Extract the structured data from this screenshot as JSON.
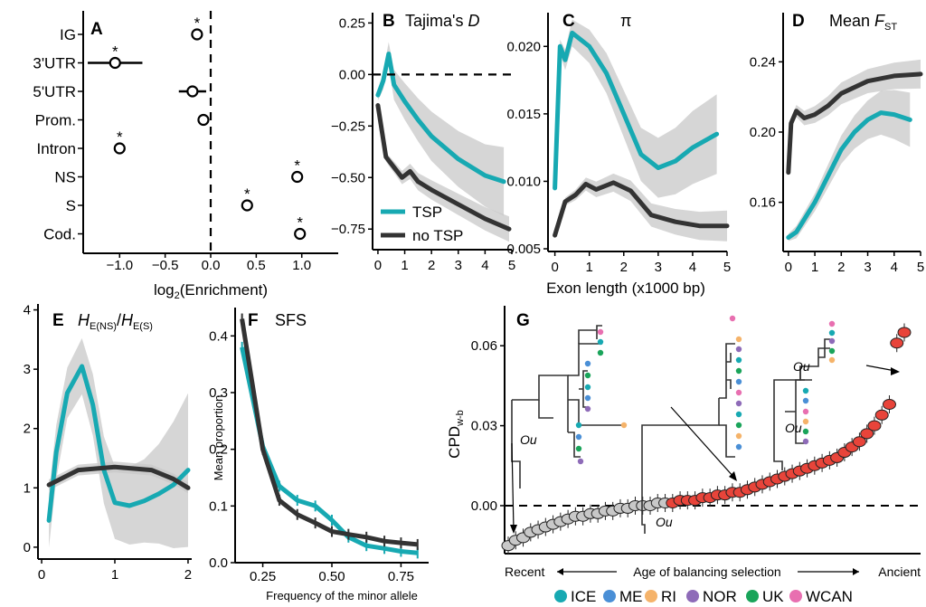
{
  "colors": {
    "tsp": "#17a9b2",
    "no_tsp": "#333333",
    "band": "#c8c8c8",
    "red": "#e8443a",
    "grey_pt": "#c8c8c8"
  },
  "panels": {
    "A": {
      "letter": "A",
      "xlabel": "log2(Enrichment)",
      "xlabel_base": "log",
      "xlabel_sub": "2",
      "xlabel_rest": "(Enrichment)",
      "xticks": [
        "−1.0",
        "−0.5",
        "0.0",
        "0.5",
        "1.0"
      ],
      "star": "*"
    },
    "B": {
      "letter": "B",
      "title": "Tajima's ",
      "title_italic": "D",
      "yticks": [
        "0.25",
        "0.00",
        "−0.25",
        "−0.50",
        "−0.75"
      ],
      "xticks": [
        "0",
        "1",
        "2",
        "3",
        "4",
        "5"
      ]
    },
    "C": {
      "letter": "C",
      "title": "π",
      "yticks": [
        "0.020",
        "0.015",
        "0.010",
        "0.005"
      ],
      "xticks": [
        "0",
        "1",
        "2",
        "3",
        "4",
        "5"
      ],
      "xlabel": "Exon length (x1000 bp)"
    },
    "D": {
      "letter": "D",
      "title": "Mean ",
      "title_italic": "F",
      "title_sub": "ST",
      "yticks": [
        "0.24",
        "0.20",
        "0.16"
      ],
      "xticks": [
        "0",
        "1",
        "2",
        "3",
        "4",
        "5"
      ]
    },
    "E": {
      "letter": "E",
      "title_h1": "H",
      "title_sub1": "E(NS)",
      "title_slash": "/",
      "title_h2": "H",
      "title_sub2": "E(S)",
      "yticks": [
        "4",
        "3",
        "2",
        "1",
        "0"
      ],
      "xticks": [
        "0",
        "1",
        "2"
      ]
    },
    "F": {
      "letter": "F",
      "title": "SFS",
      "ylabel": "Mean proportion",
      "xlabel": "Frequency of the minor allele",
      "yticks": [
        "0.4",
        "0.3",
        "0.2",
        "0.1",
        "0.0"
      ],
      "xticks": [
        "0.25",
        "0.50",
        "0.75"
      ]
    },
    "G": {
      "letter": "G",
      "ylabel_base": "CPD",
      "ylabel_sub": "w-b",
      "yticks": [
        "0.06",
        "0.03",
        "0.00"
      ],
      "recent": "Recent",
      "ancient": "Ancient",
      "axis_text": "Age of balancing selection",
      "ou": "Ou"
    }
  },
  "legend_bc": [
    {
      "label": "TSP",
      "color": "#17a9b2"
    },
    {
      "label": "no TSP",
      "color": "#333333"
    }
  ],
  "legend_pop": [
    {
      "label": "ICE",
      "color": "#17a9b2"
    },
    {
      "label": "ME",
      "color": "#4a8fd6"
    },
    {
      "label": "RI",
      "color": "#f5b36a"
    },
    {
      "label": "NOR",
      "color": "#8e6bb8"
    },
    {
      "label": "UK",
      "color": "#1aa45a"
    },
    {
      "label": "WCAN",
      "color": "#e86fb0"
    }
  ],
  "chart_data": [
    {
      "panel": "A",
      "type": "scatter",
      "xlim": [
        -1.4,
        1.4
      ],
      "categories": [
        "IG",
        "3'UTR",
        "5'UTR",
        "Prom.",
        "Intron",
        "NS",
        "S",
        "Cod."
      ],
      "values": [
        -0.15,
        -1.05,
        -0.2,
        -0.08,
        -1.0,
        0.95,
        0.4,
        0.98
      ],
      "ci_low": [
        -0.2,
        -1.35,
        -0.35,
        -0.13,
        -1.03,
        0.92,
        0.37,
        0.95
      ],
      "ci_high": [
        -0.1,
        -0.75,
        -0.05,
        -0.03,
        -0.97,
        0.98,
        0.43,
        1.01
      ],
      "significant": [
        true,
        true,
        false,
        false,
        true,
        true,
        true,
        true
      ]
    },
    {
      "panel": "B",
      "type": "line",
      "ylim": [
        -0.85,
        0.3
      ],
      "xlim": [
        -0.2,
        5
      ],
      "series": [
        {
          "name": "TSP",
          "x": [
            0,
            0.2,
            0.4,
            0.6,
            1,
            1.5,
            2,
            3,
            4,
            4.7
          ],
          "y": [
            -0.1,
            -0.03,
            0.1,
            -0.05,
            -0.13,
            -0.22,
            -0.3,
            -0.41,
            -0.49,
            -0.52
          ]
        },
        {
          "name": "no TSP",
          "x": [
            0,
            0.3,
            0.6,
            0.9,
            1.2,
            1.5,
            2,
            3,
            4,
            4.9
          ],
          "y": [
            -0.15,
            -0.4,
            -0.45,
            -0.5,
            -0.47,
            -0.52,
            -0.56,
            -0.63,
            -0.7,
            -0.75
          ]
        }
      ]
    },
    {
      "panel": "C",
      "type": "line",
      "ylim": [
        0.0048,
        0.0225
      ],
      "xlim": [
        -0.2,
        5
      ],
      "series": [
        {
          "name": "TSP",
          "x": [
            0,
            0.15,
            0.3,
            0.5,
            1,
            1.5,
            2,
            2.5,
            3,
            3.5,
            4,
            4.7
          ],
          "y": [
            0.0095,
            0.02,
            0.019,
            0.021,
            0.02,
            0.018,
            0.015,
            0.012,
            0.011,
            0.0115,
            0.0125,
            0.0135
          ]
        },
        {
          "name": "no TSP",
          "x": [
            0,
            0.3,
            0.6,
            0.9,
            1.2,
            1.7,
            2.2,
            2.8,
            3.5,
            4.2,
            5
          ],
          "y": [
            0.006,
            0.0085,
            0.009,
            0.0098,
            0.0094,
            0.0099,
            0.0093,
            0.0075,
            0.007,
            0.0067,
            0.0067
          ]
        }
      ]
    },
    {
      "panel": "D",
      "type": "line",
      "ylim": [
        0.132,
        0.268
      ],
      "xlim": [
        -0.2,
        5
      ],
      "series": [
        {
          "name": "TSP",
          "x": [
            0,
            0.3,
            1,
            1.5,
            2,
            2.5,
            3,
            3.5,
            4,
            4.6
          ],
          "y": [
            0.14,
            0.143,
            0.16,
            0.175,
            0.19,
            0.2,
            0.207,
            0.211,
            0.21,
            0.207
          ]
        },
        {
          "name": "no TSP",
          "x": [
            0,
            0.1,
            0.3,
            0.6,
            1,
            1.5,
            2,
            3,
            4,
            5
          ],
          "y": [
            0.177,
            0.205,
            0.212,
            0.208,
            0.21,
            0.215,
            0.222,
            0.229,
            0.232,
            0.233
          ]
        }
      ]
    },
    {
      "panel": "E",
      "type": "line",
      "ylim": [
        -0.2,
        4.1
      ],
      "xlim": [
        -0.05,
        2.05
      ],
      "series": [
        {
          "name": "TSP",
          "x": [
            0.1,
            0.2,
            0.35,
            0.55,
            0.7,
            0.85,
            1,
            1.2,
            1.4,
            1.6,
            1.8,
            2
          ],
          "y": [
            0.45,
            1.6,
            2.6,
            3.05,
            2.4,
            1.3,
            0.75,
            0.7,
            0.78,
            0.9,
            1.05,
            1.3
          ]
        },
        {
          "name": "no TSP",
          "x": [
            0.1,
            0.5,
            1,
            1.5,
            1.8,
            2
          ],
          "y": [
            1.05,
            1.3,
            1.35,
            1.3,
            1.15,
            1.0
          ]
        }
      ]
    },
    {
      "panel": "F",
      "type": "line",
      "ylim": [
        0,
        0.45
      ],
      "xlim": [
        0.15,
        0.85
      ],
      "series": [
        {
          "name": "TSP",
          "x": [
            0.175,
            0.25,
            0.31,
            0.375,
            0.44,
            0.5,
            0.56,
            0.625,
            0.69,
            0.75,
            0.81
          ],
          "y": [
            0.38,
            0.205,
            0.135,
            0.11,
            0.1,
            0.075,
            0.045,
            0.03,
            0.025,
            0.02,
            0.017
          ]
        },
        {
          "name": "no TSP",
          "x": [
            0.175,
            0.25,
            0.31,
            0.375,
            0.44,
            0.5,
            0.56,
            0.625,
            0.69,
            0.75,
            0.81
          ],
          "y": [
            0.43,
            0.2,
            0.11,
            0.085,
            0.07,
            0.055,
            0.05,
            0.045,
            0.038,
            0.035,
            0.032
          ]
        }
      ]
    },
    {
      "panel": "G",
      "type": "scatter",
      "ylim": [
        -0.018,
        0.075
      ],
      "y": [
        -0.015,
        -0.013,
        -0.012,
        -0.01,
        -0.009,
        -0.008,
        -0.007,
        -0.006,
        -0.005,
        -0.004,
        -0.004,
        -0.003,
        -0.003,
        -0.002,
        -0.002,
        -0.001,
        -0.001,
        0.0,
        0.0,
        0.0,
        0.001,
        0.001,
        0.001,
        0.002,
        0.002,
        0.002,
        0.003,
        0.003,
        0.004,
        0.004,
        0.005,
        0.005,
        0.006,
        0.007,
        0.008,
        0.009,
        0.01,
        0.011,
        0.012,
        0.013,
        0.014,
        0.015,
        0.016,
        0.017,
        0.018,
        0.02,
        0.022,
        0.024,
        0.027,
        0.03,
        0.034,
        0.038,
        0.061,
        0.065
      ],
      "group_split": 22
    }
  ]
}
